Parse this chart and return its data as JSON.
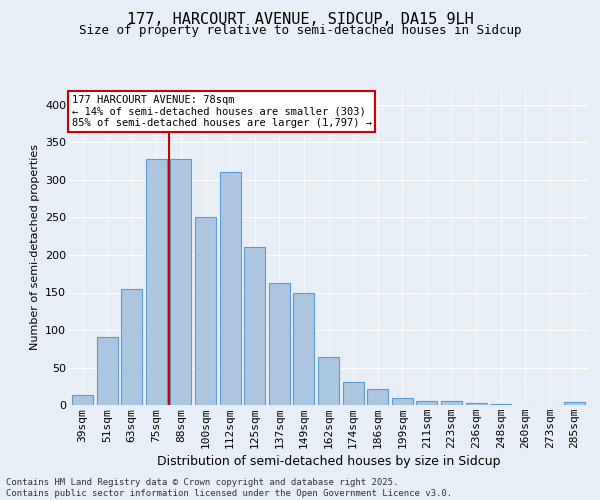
{
  "title1": "177, HARCOURT AVENUE, SIDCUP, DA15 9LH",
  "title2": "Size of property relative to semi-detached houses in Sidcup",
  "xlabel": "Distribution of semi-detached houses by size in Sidcup",
  "ylabel": "Number of semi-detached properties",
  "categories": [
    "39sqm",
    "51sqm",
    "63sqm",
    "75sqm",
    "88sqm",
    "100sqm",
    "112sqm",
    "125sqm",
    "137sqm",
    "149sqm",
    "162sqm",
    "174sqm",
    "186sqm",
    "199sqm",
    "211sqm",
    "223sqm",
    "236sqm",
    "248sqm",
    "260sqm",
    "273sqm",
    "285sqm"
  ],
  "values": [
    13,
    91,
    155,
    328,
    328,
    250,
    311,
    211,
    163,
    150,
    64,
    31,
    21,
    10,
    5,
    5,
    3,
    2,
    0,
    0,
    4
  ],
  "bar_color": "#adc6e0",
  "bar_edge_color": "#5b9bd5",
  "vline_x": 3.5,
  "vline_color": "#cc0000",
  "annotation_title": "177 HARCOURT AVENUE: 78sqm",
  "annotation_line1": "← 14% of semi-detached houses are smaller (303)",
  "annotation_line2": "85% of semi-detached houses are larger (1,797) →",
  "annotation_box_color": "#ffffff",
  "annotation_box_edge": "#cc0000",
  "footer1": "Contains HM Land Registry data © Crown copyright and database right 2025.",
  "footer2": "Contains public sector information licensed under the Open Government Licence v3.0.",
  "ylim": [
    0,
    420
  ],
  "yticks": [
    0,
    50,
    100,
    150,
    200,
    250,
    300,
    350,
    400
  ],
  "bg_color": "#e8eef6",
  "plot_bg_color": "#e8eef6",
  "title1_fontsize": 11,
  "title2_fontsize": 9,
  "xlabel_fontsize": 9,
  "ylabel_fontsize": 8,
  "tick_fontsize": 8,
  "footer_fontsize": 6.5,
  "ann_fontsize": 7.5
}
